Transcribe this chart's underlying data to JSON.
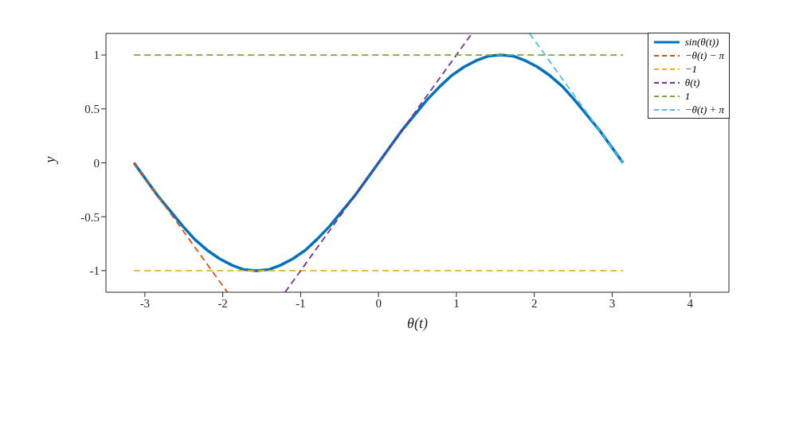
{
  "chart_data": {
    "type": "line",
    "xlabel": "θ(t)",
    "ylabel": "y",
    "xlim": [
      -3.5,
      4.5
    ],
    "ylim": [
      -1.2,
      1.2
    ],
    "xticks": [
      -3,
      -2,
      -1,
      0,
      1,
      2,
      3,
      4
    ],
    "yticks": [
      -1,
      -0.5,
      0,
      0.5,
      1
    ],
    "legend": "top right",
    "marker": "none",
    "series": [
      {
        "name": "sin(θ(t))",
        "color": "#0072bd",
        "line_style": "solid",
        "x": [
          -3.14,
          -2.98,
          -2.83,
          -2.67,
          -2.51,
          -2.36,
          -2.2,
          -2.04,
          -1.88,
          -1.73,
          -1.57,
          -1.41,
          -1.26,
          -1.1,
          -0.94,
          -0.79,
          -0.63,
          -0.47,
          -0.31,
          -0.16,
          0,
          0.16,
          0.31,
          0.47,
          0.63,
          0.79,
          0.94,
          1.1,
          1.26,
          1.41,
          1.57,
          1.73,
          1.88,
          2.04,
          2.2,
          2.36,
          2.51,
          2.67,
          2.83,
          2.98,
          3.14
        ],
        "values": [
          0,
          -0.16,
          -0.31,
          -0.45,
          -0.59,
          -0.71,
          -0.81,
          -0.89,
          -0.95,
          -0.99,
          -1,
          -0.99,
          -0.95,
          -0.89,
          -0.81,
          -0.71,
          -0.59,
          -0.45,
          -0.31,
          -0.16,
          0,
          0.16,
          0.31,
          0.45,
          0.59,
          0.71,
          0.81,
          0.89,
          0.95,
          0.99,
          1,
          0.99,
          0.95,
          0.89,
          0.81,
          0.71,
          0.59,
          0.45,
          0.31,
          0.16,
          0
        ]
      },
      {
        "name": "−θ(t) − π",
        "color": "#d95319",
        "line_style": "dashed",
        "x": [
          -3.14,
          -1.94
        ],
        "values": [
          0,
          -1.2
        ]
      },
      {
        "name": "−1",
        "color": "#edb120",
        "line_style": "dashed",
        "x": [
          -3.14,
          3.14
        ],
        "values": [
          -1,
          -1
        ]
      },
      {
        "name": "θ(t)",
        "color": "#7e2f8e",
        "line_style": "dashed",
        "x": [
          -1.2,
          1.2
        ],
        "values": [
          -1.2,
          1.2
        ]
      },
      {
        "name": "1",
        "color": "#77ac30",
        "line_style": "dashed",
        "x": [
          -3.14,
          3.14
        ],
        "values": [
          1,
          1
        ]
      },
      {
        "name": "−θ(t) + π",
        "color": "#4dbeee",
        "line_style": "dashed",
        "x": [
          1.94,
          3.14
        ],
        "values": [
          1.2,
          0
        ]
      }
    ]
  }
}
